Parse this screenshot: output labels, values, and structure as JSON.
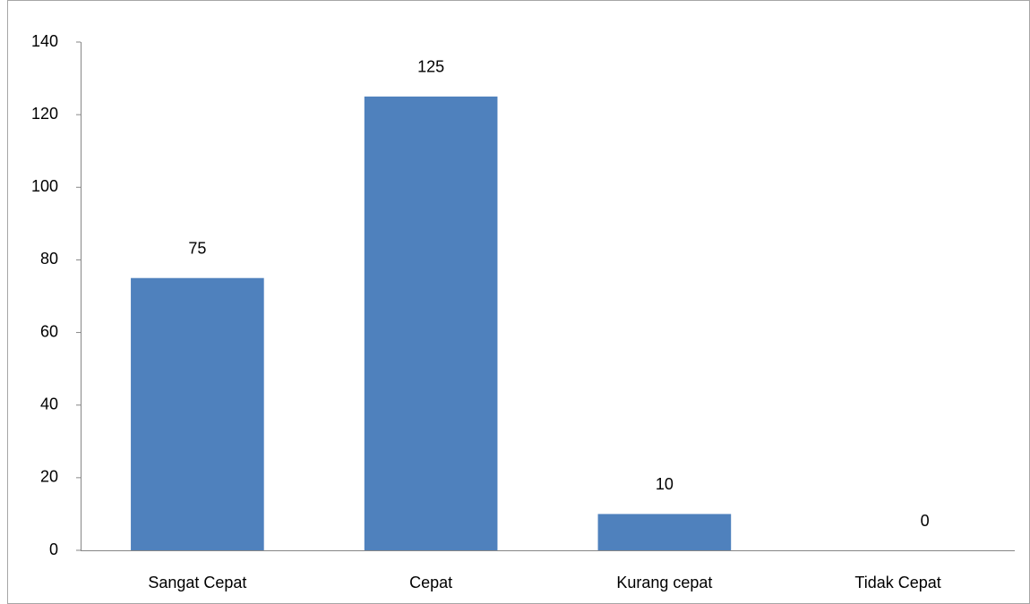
{
  "chart_data": {
    "type": "bar",
    "categories": [
      "Sangat Cepat",
      "Cepat",
      "Kurang cepat",
      "Tidak Cepat"
    ],
    "values": [
      75,
      125,
      10,
      0
    ],
    "color": "#4f81bd",
    "ylim": [
      0,
      140
    ],
    "yticks": [
      0,
      20,
      40,
      60,
      80,
      100,
      120,
      140
    ],
    "grid": false
  }
}
